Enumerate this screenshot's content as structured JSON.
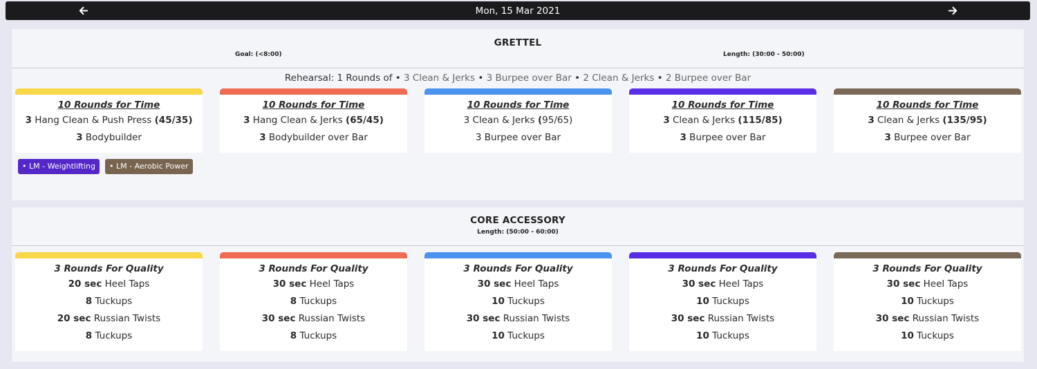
{
  "header": {
    "date": "Mon, 15 Mar 2021"
  },
  "colors": [
    "#f8d748",
    "#ef6c52",
    "#4a93ee",
    "#5a2ee6",
    "#7a6956"
  ],
  "workout1": {
    "title": "GRETTEL",
    "goal": "Goal: (<8:00)",
    "length": "Length: (30:00 - 50:00)",
    "rehearsal": {
      "label": "Rehearsal: 1 Rounds of",
      "moves": [
        "3 Clean & Jerks",
        "3 Burpee over Bar",
        "2 Clean & Jerks",
        "2 Burpee over Bar"
      ]
    },
    "cards": [
      {
        "title": "10 Rounds for Time",
        "rows": [
          {
            "b1": "3",
            "t": " Hang Clean & Push Press ",
            "b2": "(45/35)"
          },
          {
            "b1": "3",
            "t": " Bodybuilder",
            "b2": ""
          }
        ]
      },
      {
        "title": "10 Rounds for Time",
        "rows": [
          {
            "b1": "3",
            "t": " Hang Clean & Jerks ",
            "b2": "(65/45)"
          },
          {
            "b1": "3",
            "t": " Bodybuilder over Bar",
            "b2": ""
          }
        ]
      },
      {
        "title": "10 Rounds for Time",
        "rows": [
          {
            "b1": "",
            "t": "3 Clean & Jerks ",
            "b2": "(",
            "t2": "95/65)"
          },
          {
            "b1": "",
            "t": "3 Burpee over Bar",
            "b2": ""
          }
        ]
      },
      {
        "title": "10 Rounds for Time",
        "rows": [
          {
            "b1": "3",
            "t": " Clean & Jerks ",
            "b2": "(115/85)"
          },
          {
            "b1": "3",
            "t": " Burpee over Bar",
            "b2": ""
          }
        ]
      },
      {
        "title": "10 Rounds for Time",
        "rows": [
          {
            "b1": "3",
            "t": " Clean & Jerks ",
            "b2": "(135/95)"
          },
          {
            "b1": "3",
            "t": " Burpee over Bar",
            "b2": ""
          }
        ]
      }
    ],
    "tags": [
      {
        "label": "• LM - Weightlifting",
        "color": "#5327c8"
      },
      {
        "label": "• LM - Aerobic Power",
        "color": "#78644f"
      }
    ]
  },
  "workout2": {
    "title": "CORE ACCESSORY",
    "length": "Length: (50:00 - 60:00)",
    "cards": [
      {
        "title": "3 Rounds For Quality",
        "rows": [
          {
            "b1": "20 sec",
            "t": " Heel Taps"
          },
          {
            "b1": "8",
            "t": " Tuckups"
          },
          {
            "b1": "20 sec",
            "t": " Russian Twists"
          },
          {
            "b1": "8",
            "t": " Tuckups"
          }
        ]
      },
      {
        "title": "3 Rounds For Quality",
        "rows": [
          {
            "b1": "30 sec",
            "t": " Heel Taps"
          },
          {
            "b1": "8",
            "t": " Tuckups"
          },
          {
            "b1": "30 sec",
            "t": " Russian Twists"
          },
          {
            "b1": "8",
            "t": " Tuckups"
          }
        ]
      },
      {
        "title": "3 Rounds For Quality",
        "rows": [
          {
            "b1": "30 sec",
            "t": " Heel Taps"
          },
          {
            "b1": "10",
            "t": " Tuckups"
          },
          {
            "b1": "30 sec",
            "t": " Russian Twists"
          },
          {
            "b1": "10",
            "t": " Tuckups"
          }
        ]
      },
      {
        "title": "3 Rounds For Quality",
        "rows": [
          {
            "b1": "30 sec",
            "t": " Heel Taps"
          },
          {
            "b1": "10",
            "t": " Tuckups"
          },
          {
            "b1": "30 sec",
            "t": " Russian Twists"
          },
          {
            "b1": "10",
            "t": " Tuckups"
          }
        ]
      },
      {
        "title": "3 Rounds For Quality",
        "rows": [
          {
            "b1": "30 sec",
            "t": " Heel Taps"
          },
          {
            "b1": "10",
            "t": " Tuckups"
          },
          {
            "b1": "30 sec",
            "t": " Russian Twists"
          },
          {
            "b1": "10",
            "t": " Tuckups"
          }
        ]
      }
    ]
  }
}
